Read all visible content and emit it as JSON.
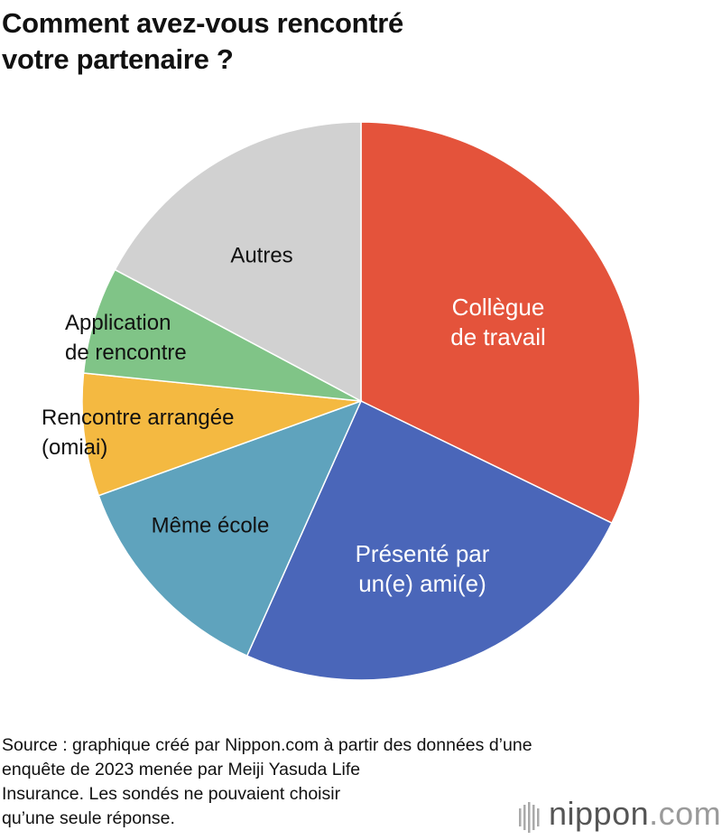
{
  "chart_data": {
    "type": "pie",
    "title": "Comment avez-vous rencontré\nvotre partenaire ?",
    "categories": [
      "Collègue\nde travail",
      "Présenté par\nun(e) ami(e)",
      "Même école",
      "Rencontre arrangée\n(omiai)",
      "Application\nde rencontre",
      "Autres"
    ],
    "values": [
      32.2,
      24.5,
      12.8,
      7.1,
      6.2,
      17.2
    ],
    "colors": [
      "#e4533b",
      "#4a66b9",
      "#5fa3bd",
      "#f4b941",
      "#80c487",
      "#d1d1d1"
    ]
  },
  "source": "Source : graphique créé par Nippon.com à partir des données d’une\nenquête de 2023 menée par Meiji Yasuda Life\nInsurance. Les sondés ne pouvaient choisir\nqu’une seule réponse.",
  "logo": {
    "name": "nippon",
    "suffix": ".com"
  }
}
